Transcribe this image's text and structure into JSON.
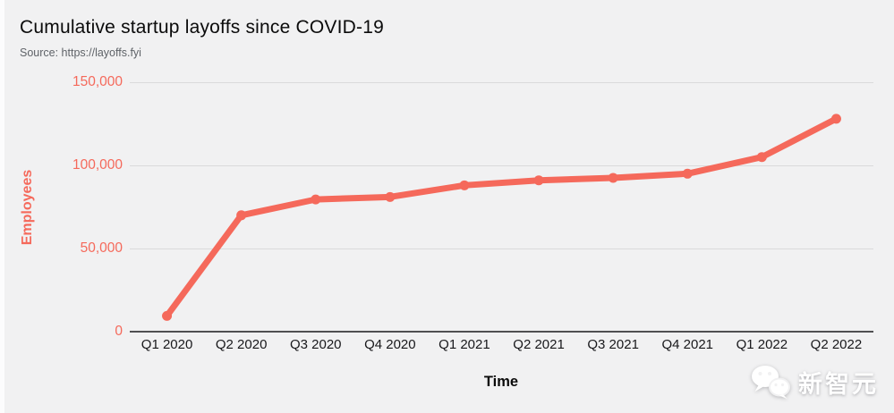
{
  "header": {
    "title": "Cumulative startup layoffs since COVID-19",
    "source": "Source: https://layoffs.fyi"
  },
  "chart_data": {
    "type": "line",
    "title": "Cumulative startup layoffs since COVID-19",
    "subtitle": "Source: https://layoffs.fyi",
    "xlabel": "Time",
    "ylabel": "Employees",
    "categories": [
      "Q1 2020",
      "Q2 2020",
      "Q3 2020",
      "Q4 2020",
      "Q1 2021",
      "Q2 2021",
      "Q3 2021",
      "Q4 2021",
      "Q1 2022",
      "Q2 2022"
    ],
    "values": [
      9500,
      70000,
      79500,
      81000,
      88000,
      91000,
      92500,
      95000,
      105000,
      128000
    ],
    "ylim": [
      0,
      150000
    ],
    "yticks": [
      {
        "value": 0,
        "label": "0"
      },
      {
        "value": 50000,
        "label": "50,000"
      },
      {
        "value": 100000,
        "label": "100,000"
      },
      {
        "value": 150000,
        "label": "150,000"
      }
    ],
    "grid": true,
    "legend": "none",
    "line_color": "#f5695b",
    "axis_label_color": "#f5695b",
    "tick_label_color": "#18181b",
    "background_color": "#f1f1f2",
    "gridline_color": "#dadadb",
    "axis_line_color": "#4f4f51"
  },
  "watermark": {
    "text": "新智元",
    "icon": "wechat-icon",
    "color": "#ffffff"
  }
}
